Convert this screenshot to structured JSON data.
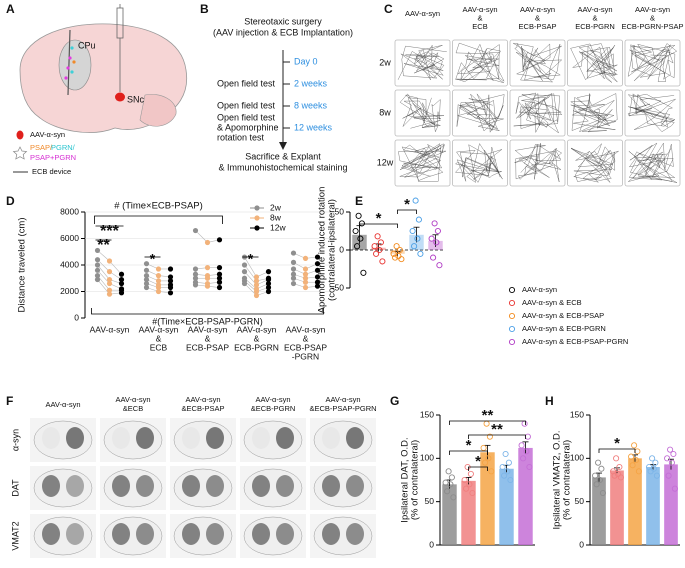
{
  "panel_labels": [
    "A",
    "B",
    "C",
    "D",
    "E",
    "F",
    "G",
    "H"
  ],
  "panel_a": {
    "region_labels": [
      "CPu",
      "SNc"
    ],
    "virus": "AAV-α-syn",
    "proteins": [
      "PSAP/",
      "PGRN/",
      "PSAP+PGRN"
    ],
    "device": "ECB device"
  },
  "panel_b": {
    "title": [
      "Stereotaxic surgery",
      "(AAV injection & ECB Implantation)"
    ],
    "timepoints": [
      "Day 0",
      "2 weeks",
      "8 weeks",
      "12 weeks"
    ],
    "steps": [
      [
        "Open field test"
      ],
      [
        "Open field test"
      ],
      [
        "Open field test",
        "& Apomorphine",
        "rotation test"
      ],
      [
        "Sacrifice & Explant",
        "& Immunohistochemical staining"
      ]
    ]
  },
  "panel_c": {
    "columns": [
      [
        "AAV-α-syn"
      ],
      [
        "AAV-α-syn",
        "&",
        "ECB"
      ],
      [
        "AAV-α-syn",
        "&",
        "ECB-PSAP"
      ],
      [
        "AAV-α-syn",
        "&",
        "ECB-PGRN"
      ],
      [
        "AAV-α-syn",
        "&",
        "ECB-PGRN-PSAP"
      ]
    ],
    "rows": [
      "2w",
      "8w",
      "12w"
    ]
  },
  "panel_f": {
    "columns": [
      [
        "AAV-α-syn"
      ],
      [
        "AAV-α-syn",
        "&ECB"
      ],
      [
        "AAV-α-syn",
        "&ECB-PSAP"
      ],
      [
        "AAV-α-syn",
        "&ECB-PGRN"
      ],
      [
        "AAV-α-syn",
        "&ECB-PSAP-PGRN"
      ]
    ],
    "rows": [
      "α-syn",
      "DAT",
      "VMAT2"
    ]
  },
  "chart_data": [
    {
      "type": "dot",
      "ylabel": [
        "Distance traveled (cm)"
      ],
      "categories": [
        [
          "AAV-α-syn"
        ],
        [
          "AAV-α-syn",
          "&",
          "ECB"
        ],
        [
          "AAV-α-syn",
          "&",
          "ECB-PSAP"
        ],
        [
          "AAV-α-syn",
          "&",
          "ECB-PGRN"
        ],
        [
          "AAV-α-syn",
          "&",
          "ECB-PSAP",
          "-PGRN"
        ]
      ],
      "series": [
        {
          "name": "2w",
          "color": "#8f8f8f",
          "values": [
            [
              5100,
              4400,
              4000,
              3600,
              3200,
              2900
            ],
            [
              4100,
              3600,
              3200,
              2900,
              2600,
              2300
            ],
            [
              6600,
              3700,
              3300,
              3000,
              2700,
              2500
            ],
            [
              4600,
              4000,
              3500,
              3000,
              2800,
              2600
            ],
            [
              4900,
              4200,
              3700,
              3300,
              3000,
              2600
            ]
          ]
        },
        {
          "name": "8w",
          "color": "#f2b27a",
          "values": [
            [
              4300,
              3500,
              2900,
              2600,
              2100,
              1800
            ],
            [
              3700,
              3200,
              2800,
              2500,
              2300,
              2000
            ],
            [
              5700,
              3800,
              3200,
              3000,
              2600,
              2400
            ],
            [
              3100,
              2800,
              2500,
              2200,
              2000,
              1700
            ],
            [
              4500,
              3700,
              3300,
              3000,
              2700,
              2300
            ]
          ]
        },
        {
          "name": "12w",
          "color": "#000000",
          "values": [
            [
              3300,
              2900,
              2600,
              2200,
              2100,
              1900
            ],
            [
              3700,
              3100,
              2800,
              2500,
              2300,
              1900
            ],
            [
              5900,
              3800,
              3300,
              3000,
              2700,
              2300
            ],
            [
              3500,
              3000,
              2900,
              2600,
              2300,
              2000
            ],
            [
              4600,
              4100,
              3600,
              3100,
              2700,
              2400
            ]
          ]
        }
      ],
      "ylim": [
        0,
        8000
      ],
      "yticks": [
        0,
        2000,
        4000,
        6000,
        8000
      ],
      "grid": true,
      "legend": "upper right",
      "annotations": [
        "# (Time×ECB-PSAP)",
        "***",
        "**",
        "*",
        "*",
        "#(Time×ECB-PSAP-PGRN)"
      ]
    },
    {
      "type": "dot-bar",
      "ylabel": [
        "Apomorphine induced rotation",
        "(contralateral-ipsilateral)"
      ],
      "series": [
        {
          "name": "AAV-α-syn",
          "color": "#000000",
          "values": [
            45,
            35,
            25,
            15,
            5,
            -30
          ],
          "mean": 20,
          "error": 12
        },
        {
          "name": "AAV-α-syn & ECB",
          "color": "#e8322f",
          "values": [
            18,
            10,
            5,
            0,
            -5,
            -15
          ],
          "mean": 3,
          "error": 5
        },
        {
          "name": "AAV-α-syn & ECB-PSAP",
          "color": "#f28a1c",
          "values": [
            5,
            0,
            -5,
            -8,
            -10,
            -12
          ],
          "mean": -5,
          "error": 3
        },
        {
          "name": "AAV-α-syn & ECB-PGRN",
          "color": "#4a9fe6",
          "values": [
            65,
            40,
            25,
            15,
            5,
            -5
          ],
          "mean": 20,
          "error": 10
        },
        {
          "name": "AAV-α-syn & ECB-PSAP-PGRN",
          "color": "#b03bc4",
          "values": [
            35,
            25,
            15,
            10,
            -10,
            -20
          ],
          "mean": 12,
          "error": 8
        }
      ],
      "ylim": [
        -50,
        50
      ],
      "yticks": [
        -50,
        0,
        50
      ],
      "legend": "right",
      "annotations": [
        "*",
        "*"
      ]
    },
    {
      "type": "dot-bar",
      "ylabel": [
        "Ipsilateral DAT, O.D.",
        "(% of contralateral)"
      ],
      "series": [
        {
          "color": "#8c8c8c",
          "values": [
            85,
            78,
            72,
            70,
            62,
            55
          ],
          "mean": 70,
          "error": 5
        },
        {
          "color": "#f07f7f",
          "values": [
            90,
            82,
            75,
            70,
            65,
            60
          ],
          "mean": 74,
          "error": 4
        },
        {
          "color": "#f5a445",
          "values": [
            140,
            125,
            112,
            100,
            95,
            85
          ],
          "mean": 107,
          "error": 8
        },
        {
          "color": "#7db5e8",
          "values": [
            105,
            95,
            90,
            85,
            80,
            75
          ],
          "mean": 88,
          "error": 4
        },
        {
          "color": "#c46fd6",
          "values": [
            140,
            125,
            115,
            108,
            100,
            90
          ],
          "mean": 112,
          "error": 7
        }
      ],
      "ylim": [
        0,
        150
      ],
      "yticks": [
        0,
        50,
        100,
        150
      ],
      "annotations": [
        "**",
        "**",
        "*",
        "*"
      ]
    },
    {
      "type": "dot-bar",
      "ylabel": [
        "Ipsilateral VMAT2, O.D.",
        "(% of contralateral)"
      ],
      "series": [
        {
          "color": "#8c8c8c",
          "values": [
            95,
            88,
            80,
            75,
            70,
            60
          ],
          "mean": 78,
          "error": 5
        },
        {
          "color": "#f07f7f",
          "values": [
            100,
            90,
            85,
            82,
            80,
            78
          ],
          "mean": 86,
          "error": 3
        },
        {
          "color": "#f5a445",
          "values": [
            115,
            108,
            102,
            98,
            92,
            85
          ],
          "mean": 100,
          "error": 4
        },
        {
          "color": "#7db5e8",
          "values": [
            100,
            95,
            90,
            88,
            85,
            80
          ],
          "mean": 90,
          "error": 3
        },
        {
          "color": "#c46fd6",
          "values": [
            110,
            105,
            100,
            95,
            80,
            65
          ],
          "mean": 93,
          "error": 6
        }
      ],
      "ylim": [
        0,
        150
      ],
      "yticks": [
        0,
        50,
        100,
        150
      ],
      "annotations": [
        "*"
      ]
    }
  ]
}
